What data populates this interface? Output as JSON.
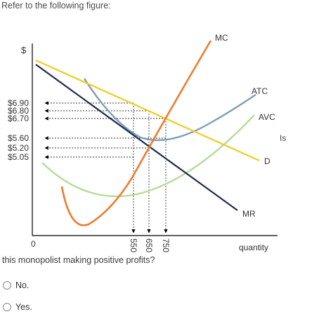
{
  "prompt": "Refer to the following figure:",
  "figure": {
    "y_axis_label": "$",
    "x_axis_label": "quantity",
    "origin_label": "0",
    "price_ticks": [
      "$6.90",
      "$6.80",
      "$6.70",
      "$5.60",
      "$5.20",
      "$5.05"
    ],
    "quantity_ticks": [
      "550",
      "650",
      "750"
    ],
    "curve_labels": {
      "mc": "MC",
      "atc": "ATC",
      "avc": "AVC",
      "d": "D",
      "mr": "MR"
    },
    "colors": {
      "mc": "#ee7c2f",
      "atc": "#7f9db8",
      "avc": "#b6dc9a",
      "d": "#f2cc1d",
      "mr": "#1f2b4d",
      "axis": "#000000"
    }
  },
  "trailing_text": "Is",
  "question": "this monopolist making positive profits?",
  "options": [
    {
      "label": "No."
    },
    {
      "label": "Yes."
    }
  ]
}
